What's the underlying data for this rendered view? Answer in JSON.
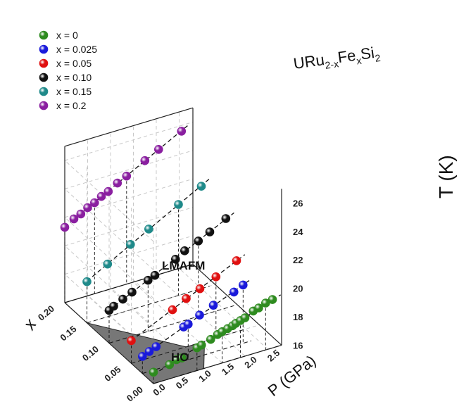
{
  "chart_data": {
    "type": "scatter",
    "title": "URu2-xFexSi2",
    "title_parts": {
      "base1": "URu",
      "sub1": "2-x",
      "base2": "Fe",
      "sub2": "x",
      "base3": "Si",
      "sub3": "2"
    },
    "axes": {
      "P": {
        "label": "P (GPa)",
        "range": [
          0,
          2.8
        ],
        "ticks": [
          "0.0",
          "0.5",
          "1.0",
          "1.5",
          "2.0",
          "2.5"
        ]
      },
      "x": {
        "label": "x",
        "range": [
          0,
          0.2
        ],
        "ticks": [
          "0.00",
          "0.05",
          "0.10",
          "0.15",
          "0.20"
        ]
      },
      "T": {
        "label": "T (K)",
        "range": [
          16,
          27
        ],
        "ticks": [
          "16",
          "18",
          "20",
          "22",
          "24",
          "26"
        ]
      }
    },
    "grid": true,
    "legend_position": "top-left",
    "regions": [
      {
        "label": "HO",
        "color": "#777777"
      },
      {
        "label": "LMAFM"
      }
    ],
    "series": [
      {
        "name": "x = 0",
        "x_value": 0,
        "label_x": "x = 0",
        "color": "#2e8b1f",
        "P": [
          0.0,
          0.35,
          0.5,
          0.62,
          0.95,
          1.05,
          1.25,
          1.4,
          1.5,
          1.62,
          1.73,
          1.8,
          1.9,
          2.0,
          2.18,
          2.3,
          2.45,
          2.6
        ],
        "T": [
          16.8,
          17.0,
          17.2,
          17.2,
          17.6,
          17.7,
          17.9,
          18.1,
          18.2,
          18.3,
          18.4,
          18.5,
          18.6,
          18.7,
          19.0,
          19.1,
          19.3,
          19.4
        ]
      },
      {
        "name": "x = 0.025",
        "x_value": 0.025,
        "label_x": "x = 0.025",
        "color": "#1a1adb",
        "P": [
          0.0,
          0.15,
          0.3,
          0.9,
          1.0,
          1.25,
          1.55,
          2.0,
          2.2
        ],
        "T": [
          17.2,
          17.4,
          17.6,
          18.4,
          18.5,
          18.9,
          19.3,
          19.8,
          20.1
        ]
      },
      {
        "name": "x = 0.05",
        "x_value": 0.05,
        "label_x": "x = 0.05",
        "color": "#e01010",
        "P": [
          0.0,
          0.9,
          1.2,
          1.5,
          1.85,
          2.3
        ],
        "T": [
          17.6,
          18.9,
          19.4,
          19.8,
          20.3,
          21.0
        ]
      },
      {
        "name": "x = 0.10",
        "x_value": 0.1,
        "label_x": "x = 0.10",
        "color": "#111111",
        "P": [
          0.0,
          0.1,
          0.3,
          0.5,
          0.85,
          1.0,
          1.45,
          1.65,
          1.95,
          2.2,
          2.55
        ],
        "T": [
          18.3,
          18.5,
          18.8,
          19.1,
          19.6,
          19.8,
          20.5,
          20.9,
          21.3,
          21.7,
          22.3
        ]
      },
      {
        "name": "x = 0.15",
        "x_value": 0.15,
        "label_x": "x = 0.15",
        "color": "#1f8a8a",
        "P": [
          0.0,
          0.45,
          0.95,
          1.35,
          2.0,
          2.5
        ],
        "T": [
          18.9,
          19.7,
          20.6,
          21.3,
          22.4,
          23.2
        ]
      },
      {
        "name": "x = 0.2",
        "x_value": 0.2,
        "label_x": "x = 0.2",
        "color": "#8a1fa0",
        "P": [
          0.0,
          0.2,
          0.35,
          0.5,
          0.65,
          0.8,
          0.95,
          1.15,
          1.35,
          1.75,
          2.05,
          2.55
        ],
        "T": [
          21.3,
          21.7,
          21.9,
          22.2,
          22.4,
          22.7,
          22.9,
          23.3,
          23.6,
          24.3,
          24.8,
          25.6
        ]
      }
    ]
  }
}
